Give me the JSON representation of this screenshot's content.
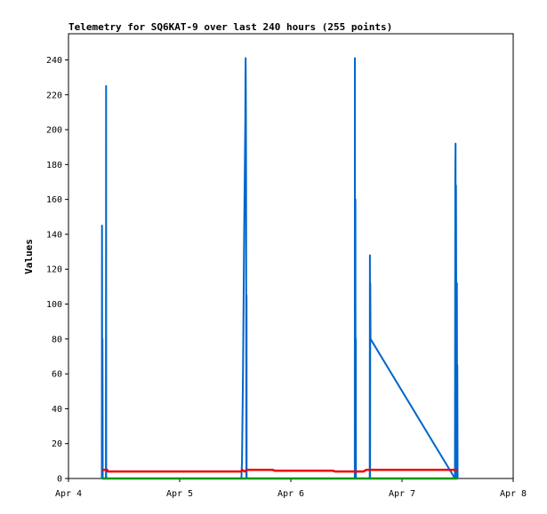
{
  "chart_data": {
    "type": "line",
    "title": "Telemetry for SQ6KAT-9 over last 240 hours (255 points)",
    "ylabel": "Values",
    "xlabel": "",
    "x_ticks": [
      "Apr 4",
      "Apr 5",
      "Apr 6",
      "Apr 7",
      "Apr 8"
    ],
    "y_ticks": [
      0,
      20,
      40,
      60,
      80,
      100,
      120,
      140,
      160,
      180,
      200,
      220,
      240
    ],
    "xlim": [
      "Apr 4",
      "Apr 8"
    ],
    "ylim": [
      0,
      255
    ],
    "grid": false,
    "legend": "none",
    "series": [
      {
        "color": "#0066cc",
        "points": [
          [
            "Apr 4 07:12",
            0
          ],
          [
            "Apr 4 07:14",
            145
          ],
          [
            "Apr 4 07:18",
            0
          ],
          [
            "Apr 4 07:20",
            80
          ],
          [
            "Apr 4 07:22",
            40
          ],
          [
            "Apr 4 07:24",
            0
          ],
          [
            "Apr 4 08:05",
            0
          ],
          [
            "Apr 4 08:07",
            225
          ],
          [
            "Apr 4 08:09",
            0
          ],
          [
            "Apr 5 13:20",
            0
          ],
          [
            "Apr 5 13:28",
            10
          ],
          [
            "Apr 5 13:40",
            60
          ],
          [
            "Apr 5 13:55",
            140
          ],
          [
            "Apr 5 14:05",
            185
          ],
          [
            "Apr 5 14:10",
            205
          ],
          [
            "Apr 5 14:13",
            230
          ],
          [
            "Apr 5 14:15",
            241
          ],
          [
            "Apr 5 14:18",
            210
          ],
          [
            "Apr 5 14:20",
            170
          ],
          [
            "Apr 5 14:24",
            0
          ],
          [
            "Apr 5 14:26",
            105
          ],
          [
            "Apr 5 14:28",
            0
          ],
          [
            "Apr 6 13:48",
            0
          ],
          [
            "Apr 6 13:50",
            241
          ],
          [
            "Apr 6 13:53",
            0
          ],
          [
            "Apr 6 13:56",
            160
          ],
          [
            "Apr 6 13:59",
            0
          ],
          [
            "Apr 6 14:01",
            80
          ],
          [
            "Apr 6 14:03",
            0
          ],
          [
            "Apr 6 17:02",
            0
          ],
          [
            "Apr 6 17:04",
            128
          ],
          [
            "Apr 6 17:07",
            0
          ],
          [
            "Apr 6 17:09",
            112
          ],
          [
            "Apr 6 17:12",
            80
          ],
          [
            "Apr 7 11:25",
            0
          ],
          [
            "Apr 7 11:30",
            175
          ],
          [
            "Apr 7 11:33",
            192
          ],
          [
            "Apr 7 11:36",
            0
          ],
          [
            "Apr 7 11:39",
            168
          ],
          [
            "Apr 7 11:42",
            120
          ],
          [
            "Apr 7 11:45",
            75
          ],
          [
            "Apr 7 11:48",
            0
          ],
          [
            "Apr 7 11:51",
            112
          ],
          [
            "Apr 7 11:54",
            0
          ],
          [
            "Apr 7 11:57",
            65
          ],
          [
            "Apr 7 12:00",
            0
          ]
        ]
      },
      {
        "color": "#ee0000",
        "points": [
          [
            "Apr 4 07:15",
            5
          ],
          [
            "Apr 4 08:10",
            5
          ],
          [
            "Apr 4 08:20",
            5
          ],
          [
            "Apr 4 08:30",
            4
          ],
          [
            "Apr 4 10:00",
            4
          ],
          [
            "Apr 5 13:20",
            4
          ],
          [
            "Apr 5 13:30",
            5
          ],
          [
            "Apr 5 14:00",
            4
          ],
          [
            "Apr 5 14:30",
            5
          ],
          [
            "Apr 5 20:00",
            5
          ],
          [
            "Apr 5 20:30",
            4.5
          ],
          [
            "Apr 6 09:00",
            4.5
          ],
          [
            "Apr 6 09:30",
            4
          ],
          [
            "Apr 6 14:00",
            4
          ],
          [
            "Apr 6 15:40",
            4
          ],
          [
            "Apr 6 16:20",
            5
          ],
          [
            "Apr 7 12:00",
            5
          ]
        ]
      },
      {
        "color": "#009900",
        "points": [
          [
            "Apr 4 07:15",
            0
          ],
          [
            "Apr 7 12:00",
            0
          ]
        ]
      }
    ]
  }
}
